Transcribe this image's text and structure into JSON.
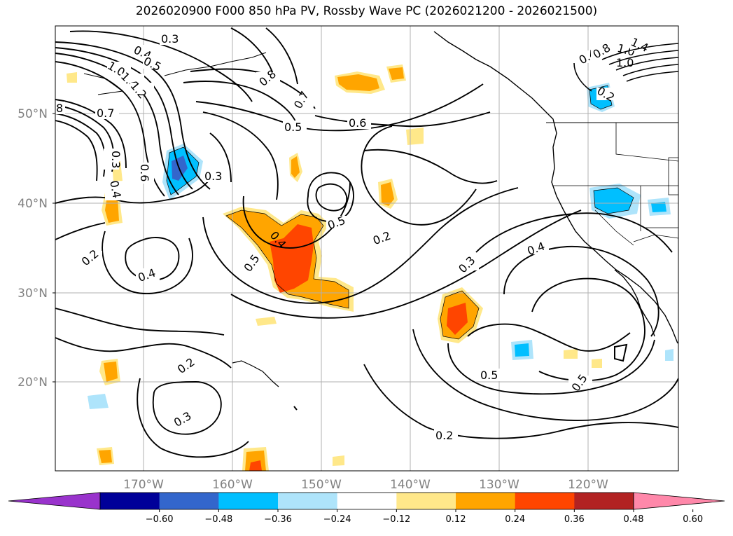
{
  "title": "2026020900 F000 850 hPa PV, Rossby Wave PC (2026021200 - 2026021500)",
  "lat_labels": [
    "50°N",
    "40°N",
    "30°N",
    "20°N"
  ],
  "lon_labels": [
    "170°W",
    "160°W",
    "150°W",
    "140°W",
    "130°W",
    "120°W"
  ],
  "colorbar": {
    "colors": [
      "#9933cc",
      "#000099",
      "#3366cc",
      "#00bfff",
      "#aee4fb",
      "#ffffff",
      "#ffe88a",
      "#ffa500",
      "#ff4500",
      "#b22222",
      "#ff88aa"
    ],
    "ticks": [
      "−0.60",
      "−0.48",
      "−0.36",
      "−0.24",
      "−0.12",
      "0.12",
      "0.24",
      "0.36",
      "0.48",
      "0.60"
    ]
  },
  "contour_labels": [
    {
      "t": "0.3",
      "k": "a"
    },
    {
      "t": "0.4",
      "k": "b"
    },
    {
      "t": "0.5",
      "k": "c"
    },
    {
      "t": "1.0",
      "k": "d"
    },
    {
      "t": "1.4",
      "k": "e"
    },
    {
      "t": "1.2",
      "k": "f"
    },
    {
      "t": "0.7",
      "k": "g"
    },
    {
      "t": "8",
      "k": "h"
    },
    {
      "t": "0.8",
      "k": "i"
    },
    {
      "t": "0.7",
      "k": "j"
    },
    {
      "t": "0.5",
      "k": "k"
    },
    {
      "t": "0.6",
      "k": "l"
    },
    {
      "t": "0.3",
      "k": "m"
    },
    {
      "t": "0.6",
      "k": "n"
    },
    {
      "t": "0.3",
      "k": "o"
    },
    {
      "t": "0.4",
      "k": "p"
    },
    {
      "t": "0.4",
      "k": "q"
    },
    {
      "t": "0.5",
      "k": "r"
    },
    {
      "t": "0.5",
      "k": "s"
    },
    {
      "t": "0.2",
      "k": "t"
    },
    {
      "t": "0.2",
      "k": "u"
    },
    {
      "t": "0.4",
      "k": "v"
    },
    {
      "t": "0.3",
      "k": "w"
    },
    {
      "t": "0.4",
      "k": "x"
    },
    {
      "t": "0.2",
      "k": "y"
    },
    {
      "t": "0.3",
      "k": "z"
    },
    {
      "t": "0.5",
      "k": "A"
    },
    {
      "t": "0.5",
      "k": "B"
    },
    {
      "t": "0.2",
      "k": "C"
    },
    {
      "t": "0.2",
      "k": "D"
    },
    {
      "t": "1.0",
      "k": "E"
    },
    {
      "t": "1.4",
      "k": "F"
    },
    {
      "t": "0.4",
      "k": "G"
    },
    {
      "t": "0.8",
      "k": "H"
    },
    {
      "t": "1.0",
      "k": "I"
    }
  ]
}
